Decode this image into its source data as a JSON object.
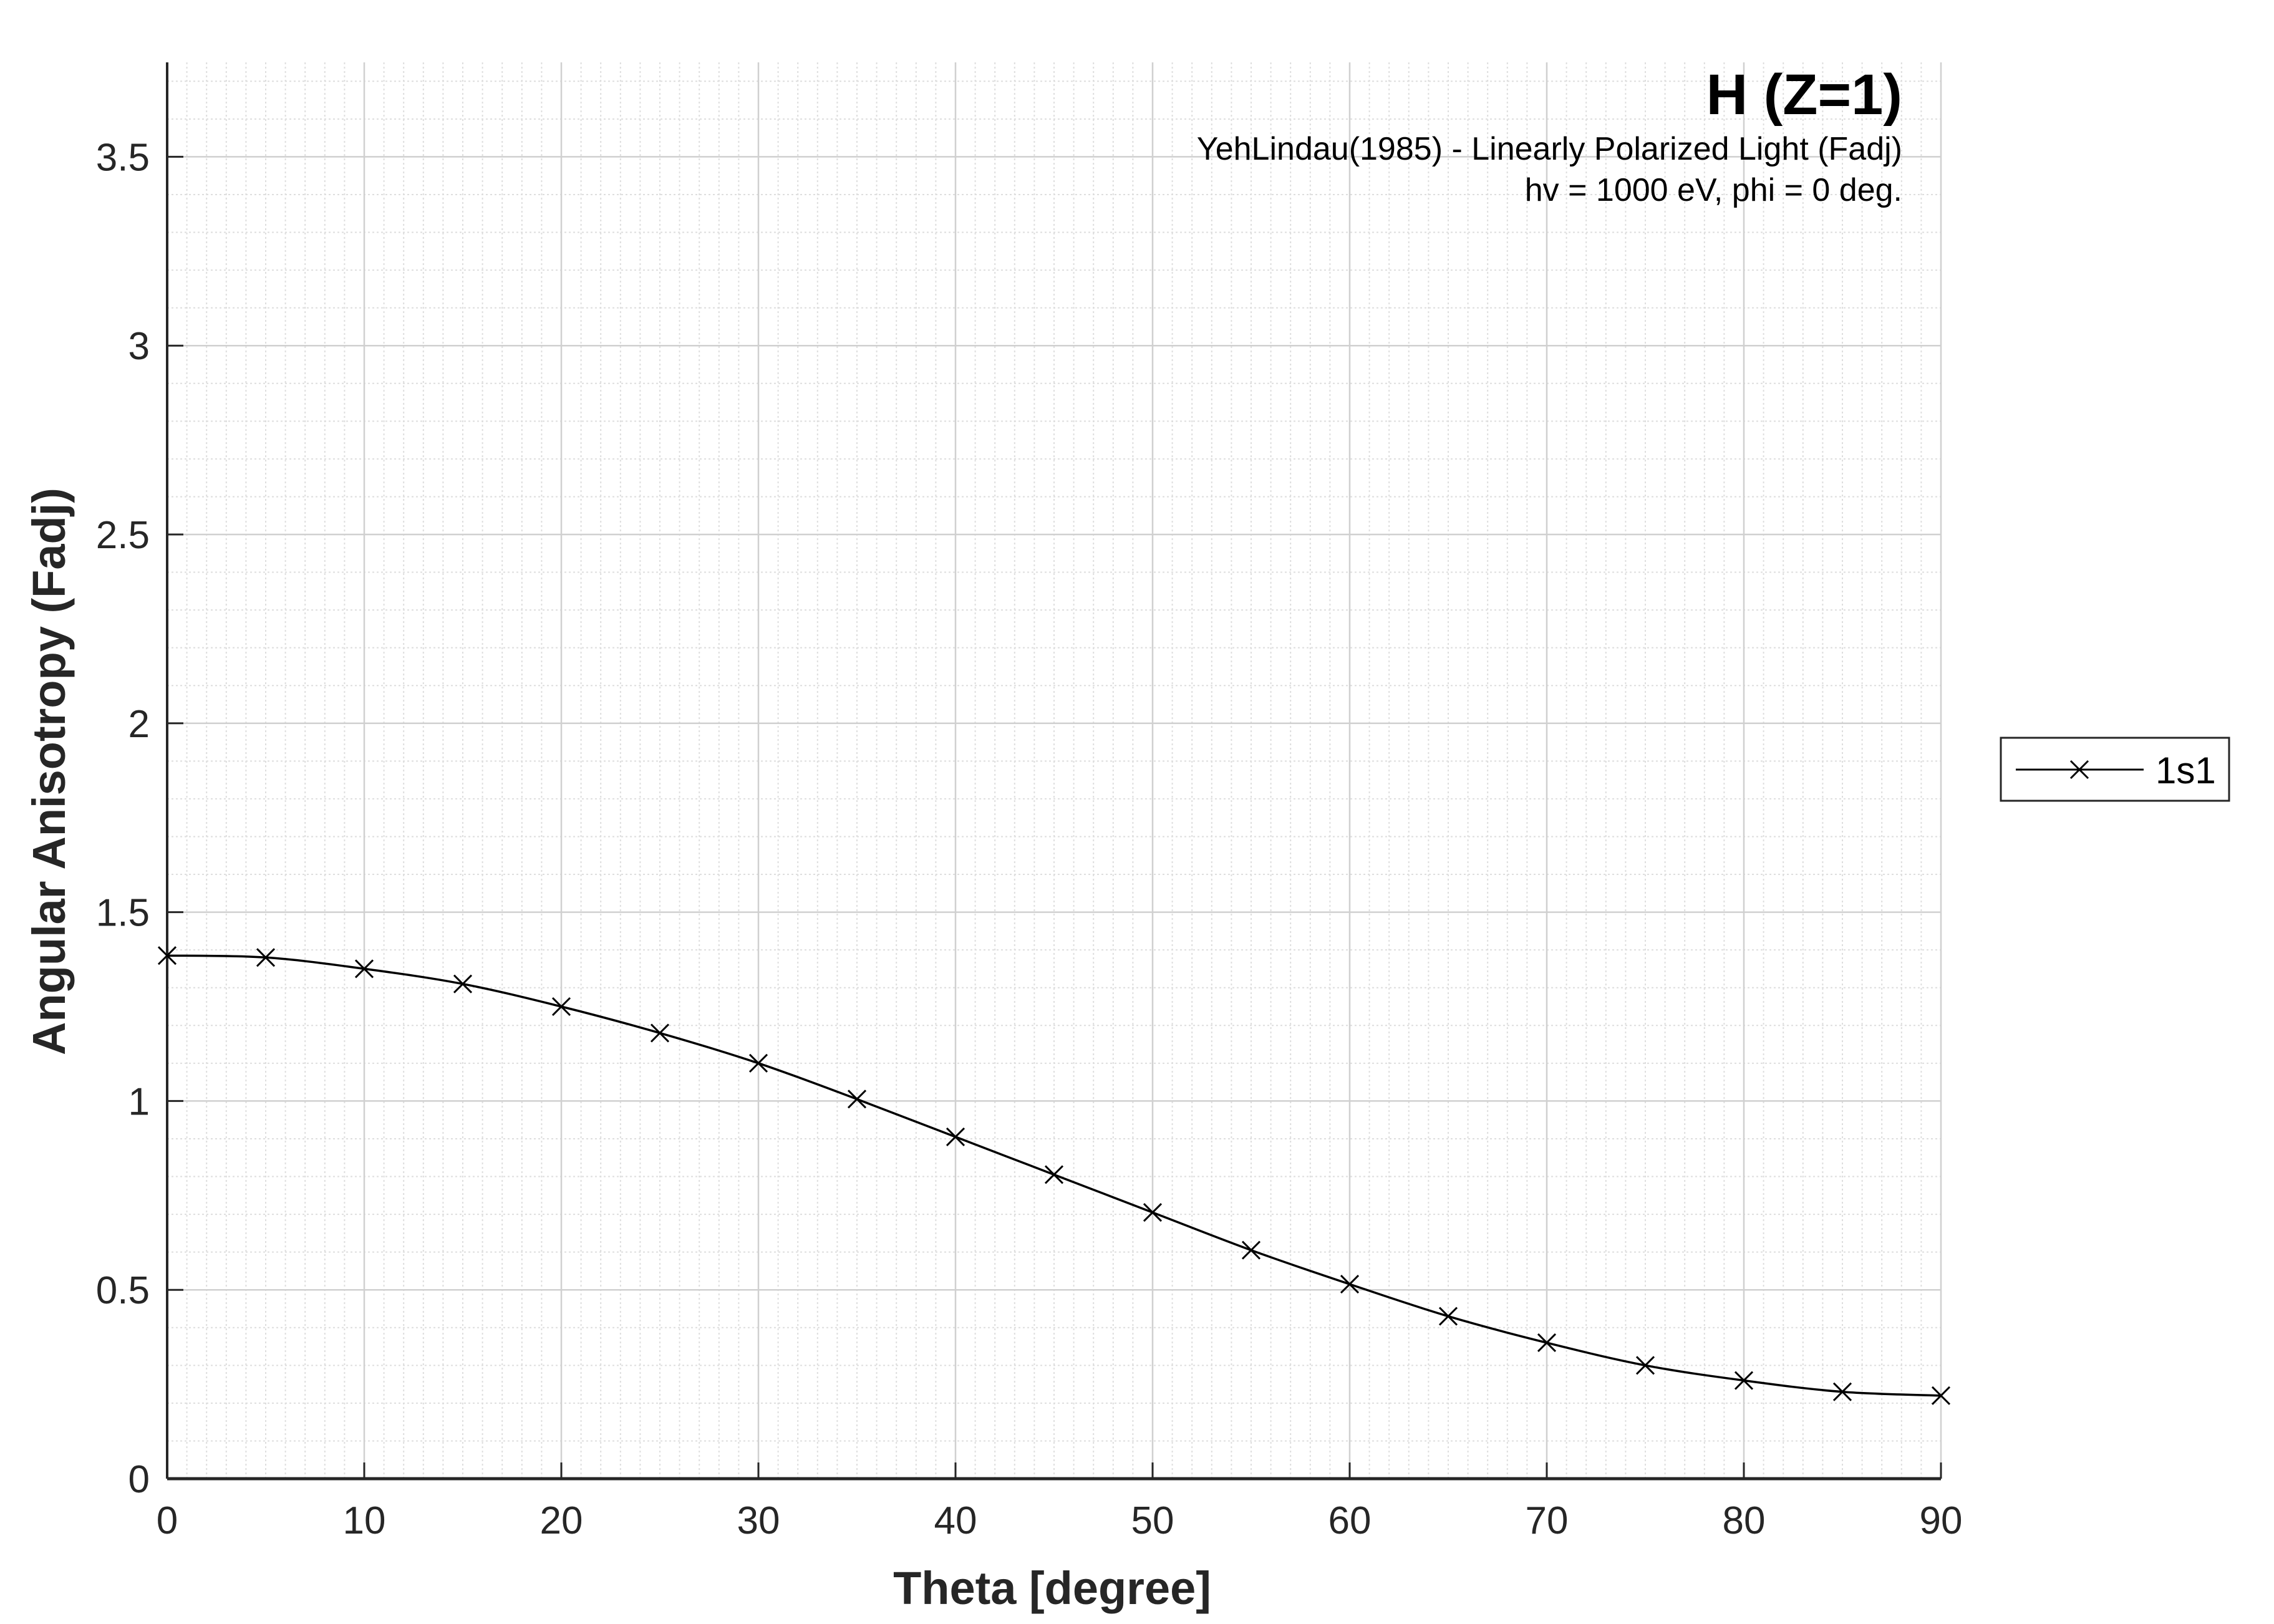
{
  "chart_data": {
    "type": "line",
    "xlabel": "Theta [degree]",
    "ylabel": "Angular Anisotropy (Fadj)",
    "xlim": [
      0,
      90
    ],
    "ylim": [
      0,
      3.75
    ],
    "xticks": [
      0,
      10,
      20,
      30,
      40,
      50,
      60,
      70,
      80,
      90
    ],
    "yticks": [
      0,
      0.5,
      1,
      1.5,
      2,
      2.5,
      3,
      3.5
    ],
    "xtick_labels": [
      "0",
      "10",
      "20",
      "30",
      "40",
      "50",
      "60",
      "70",
      "80",
      "90"
    ],
    "ytick_labels": [
      "0",
      "0.5",
      "1",
      "1.5",
      "2",
      "2.5",
      "3",
      "3.5"
    ],
    "grid": true,
    "minor_grid": true,
    "legend_placement": "outside-right",
    "annotation": {
      "title": "H (Z=1)",
      "lines": [
        "YehLindau(1985) - Linearly Polarized Light (Fadj)",
        "hv = 1000 eV, phi = 0 deg."
      ]
    },
    "series": [
      {
        "name": "1s1",
        "color": "#000000",
        "marker": "x",
        "x": [
          0,
          5,
          10,
          15,
          20,
          25,
          30,
          35,
          40,
          45,
          50,
          55,
          60,
          65,
          70,
          75,
          80,
          85,
          90
        ],
        "y": [
          1.385,
          1.38,
          1.35,
          1.31,
          1.25,
          1.18,
          1.1,
          1.005,
          0.905,
          0.805,
          0.705,
          0.605,
          0.515,
          0.43,
          0.36,
          0.3,
          0.26,
          0.23,
          0.22
        ]
      }
    ]
  }
}
